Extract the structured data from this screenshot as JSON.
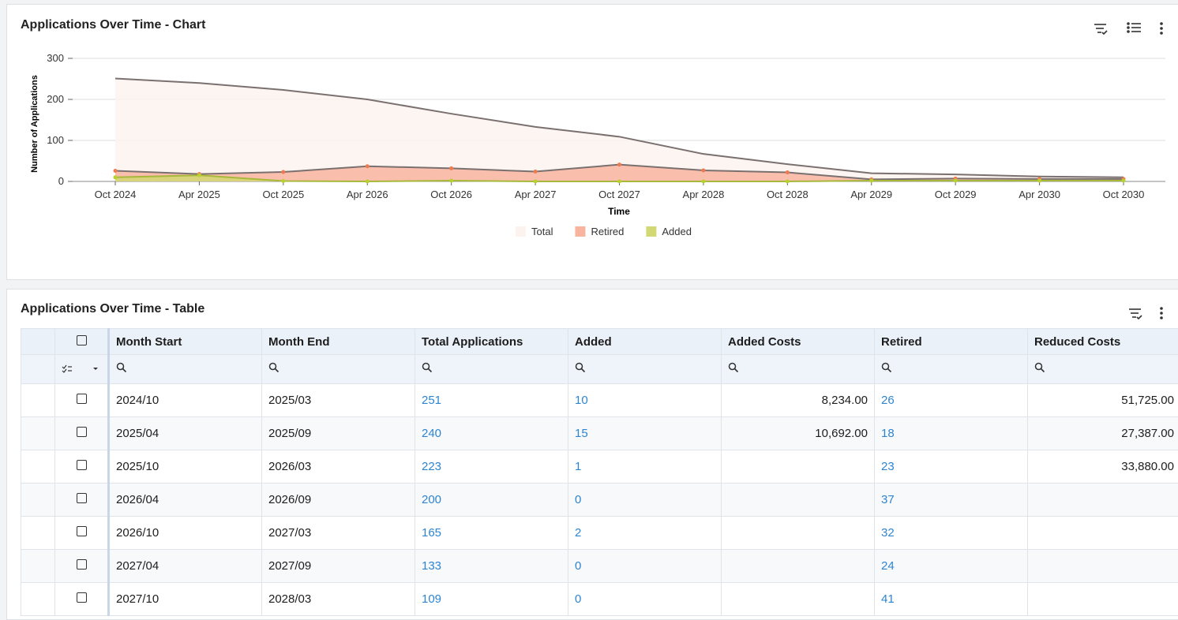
{
  "chart_panel": {
    "title": "Applications Over Time - Chart"
  },
  "chart_data": {
    "type": "area",
    "y_label": "Number of Applications",
    "x_label": "Time",
    "categories": [
      "Oct 2024",
      "Apr 2025",
      "Oct 2025",
      "Apr 2026",
      "Oct 2026",
      "Apr 2027",
      "Oct 2027",
      "Apr 2028",
      "Oct 2028",
      "Apr 2029",
      "Oct 2029",
      "Apr 2030",
      "Oct 2030"
    ],
    "series": [
      {
        "name": "Total",
        "color": "#fdf3ee",
        "line": "#7a706f",
        "values": [
          251,
          240,
          223,
          200,
          165,
          133,
          109,
          67,
          42,
          20,
          17,
          12,
          10
        ]
      },
      {
        "name": "Retired",
        "color": "#f9b4a0",
        "line": "#7a706f",
        "dot": "#f07a50",
        "values": [
          26,
          18,
          23,
          37,
          32,
          24,
          41,
          27,
          22,
          5,
          7,
          6,
          6
        ]
      },
      {
        "name": "Added",
        "color": "#d2d873",
        "line": "#a8b83a",
        "dot": "#b8d030",
        "values": [
          10,
          15,
          1,
          0,
          2,
          0,
          0,
          0,
          0,
          2,
          2,
          2,
          2
        ]
      }
    ],
    "ylim": [
      0,
      300
    ],
    "yticks": [
      0,
      100,
      200,
      300
    ],
    "grid": true
  },
  "table_panel": {
    "title": "Applications Over Time - Table",
    "columns": [
      "Month Start",
      "Month End",
      "Total Applications",
      "Added",
      "Added Costs",
      "Retired",
      "Reduced Costs"
    ],
    "link_columns": [
      2,
      3,
      5
    ],
    "right_columns": [
      4,
      6
    ],
    "rows": [
      [
        "2024/10",
        "2025/03",
        251,
        10,
        "8,234.00",
        26,
        "51,725.00"
      ],
      [
        "2025/04",
        "2025/09",
        240,
        15,
        "10,692.00",
        18,
        "27,387.00"
      ],
      [
        "2025/10",
        "2026/03",
        223,
        1,
        null,
        23,
        "33,880.00"
      ],
      [
        "2026/04",
        "2026/09",
        200,
        0,
        null,
        37,
        null
      ],
      [
        "2026/10",
        "2027/03",
        165,
        2,
        null,
        32,
        null
      ],
      [
        "2027/04",
        "2027/09",
        133,
        0,
        null,
        24,
        null
      ],
      [
        "2027/10",
        "2028/03",
        109,
        0,
        null,
        41,
        null
      ]
    ]
  }
}
